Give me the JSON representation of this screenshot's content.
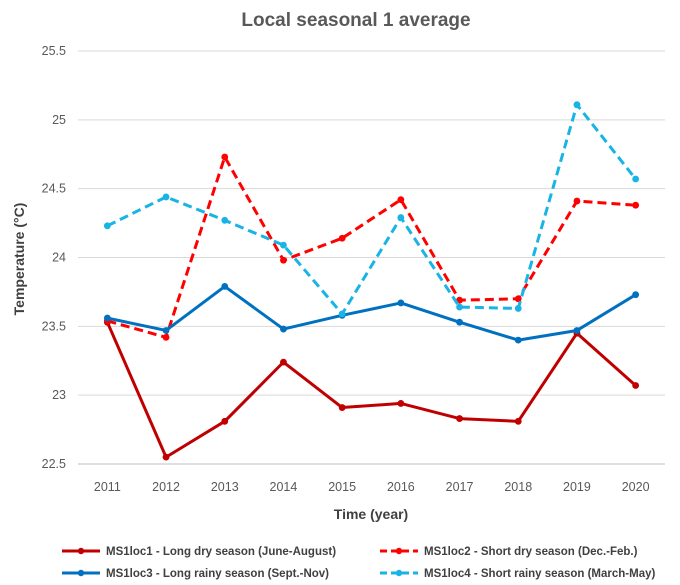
{
  "chart_data": {
    "type": "line",
    "title": "Local seasonal 1 average",
    "xlabel": "Time (year)",
    "ylabel": "Temperature (°C)",
    "ylim": [
      22.5,
      25.5
    ],
    "yticks": [
      "22.5",
      "23",
      "23.5",
      "24",
      "24.5",
      "25",
      "25.5"
    ],
    "categories": [
      "2011",
      "2012",
      "2013",
      "2014",
      "2015",
      "2016",
      "2017",
      "2018",
      "2019",
      "2020"
    ],
    "grid": "horizontal",
    "legend_position": "bottom",
    "series": [
      {
        "name": "MS1loc1 - Long dry season (June-August)",
        "color": "#c00000",
        "dashed": false,
        "values": [
          23.53,
          22.55,
          22.81,
          23.24,
          22.91,
          22.94,
          22.83,
          22.81,
          23.45,
          23.07
        ]
      },
      {
        "name": "MS1loc2 - Short dry season (Dec.-Feb.)",
        "color": "#ff0000",
        "dashed": true,
        "values": [
          23.54,
          23.42,
          24.73,
          23.98,
          24.14,
          24.42,
          23.69,
          23.7,
          24.41,
          24.38
        ]
      },
      {
        "name": "MS1loc3 - Long rainy season (Sept.-Nov)",
        "color": "#0070c0",
        "dashed": false,
        "values": [
          23.56,
          23.47,
          23.79,
          23.48,
          23.58,
          23.67,
          23.53,
          23.4,
          23.47,
          23.73
        ]
      },
      {
        "name": "MS1loc4 - Short rainy season (March-May)",
        "color": "#19b4e6",
        "dashed": true,
        "values": [
          24.23,
          24.44,
          24.27,
          24.09,
          23.59,
          24.29,
          23.64,
          23.63,
          25.11,
          24.57
        ]
      }
    ]
  }
}
